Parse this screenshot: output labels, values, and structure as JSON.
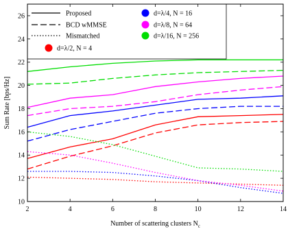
{
  "chart_data": {
    "type": "line",
    "xlabel": "Number of scattering clusters N",
    "xlabel_sub": "c",
    "ylabel": "Sum Rate [bps/Hz]",
    "xlim": [
      2,
      14
    ],
    "ylim": [
      10,
      27
    ],
    "x_ticks": [
      "2",
      "4",
      "6",
      "8",
      "10",
      "12",
      "14"
    ],
    "y_ticks": [
      "10",
      "12",
      "14",
      "16",
      "18",
      "20",
      "22",
      "24",
      "26"
    ],
    "grid": false,
    "legend_placement": "top",
    "schemes": [
      {
        "label": "Proposed",
        "dash": "solid"
      },
      {
        "label": "BCD wMMSE",
        "dash": "dashed"
      },
      {
        "label": "Mismatched",
        "dash": "dotted"
      }
    ],
    "configs": [
      {
        "label": "d=λ/2, N = 4",
        "color": "#ff0000"
      },
      {
        "label": "d=λ/4, N = 16",
        "color": "#0000ff"
      },
      {
        "label": "d=λ/8, N = 64",
        "color": "#ff00ff"
      },
      {
        "label": "d=λ/16, N = 256",
        "color": "#00dd00"
      }
    ],
    "series": [
      {
        "config": 0,
        "scheme": 0,
        "x": [
          2,
          4,
          6,
          8,
          10,
          12,
          14
        ],
        "y": [
          13.7,
          14.7,
          15.4,
          16.6,
          17.3,
          17.4,
          17.5
        ]
      },
      {
        "config": 0,
        "scheme": 1,
        "x": [
          2,
          4,
          6,
          8,
          10,
          12,
          14
        ],
        "y": [
          12.8,
          13.9,
          14.8,
          15.9,
          16.6,
          16.8,
          16.9
        ]
      },
      {
        "config": 0,
        "scheme": 2,
        "x": [
          2,
          4,
          6,
          8,
          10,
          12,
          14
        ],
        "y": [
          12.1,
          12.0,
          11.9,
          11.7,
          11.6,
          11.5,
          11.4
        ]
      },
      {
        "config": 1,
        "scheme": 0,
        "x": [
          2,
          4,
          6,
          8,
          10,
          12,
          14
        ],
        "y": [
          16.4,
          17.4,
          17.8,
          18.3,
          18.8,
          18.9,
          19.1
        ]
      },
      {
        "config": 1,
        "scheme": 1,
        "x": [
          2,
          4,
          6,
          8,
          10,
          12,
          14
        ],
        "y": [
          15.2,
          16.2,
          16.9,
          17.6,
          18.0,
          18.2,
          18.2
        ]
      },
      {
        "config": 1,
        "scheme": 2,
        "x": [
          2,
          4,
          6,
          8,
          10,
          12,
          14
        ],
        "y": [
          12.6,
          12.6,
          12.5,
          12.2,
          11.8,
          11.2,
          10.7
        ]
      },
      {
        "config": 2,
        "scheme": 0,
        "x": [
          2,
          4,
          6,
          8,
          10,
          12,
          14
        ],
        "y": [
          18.1,
          18.9,
          19.2,
          19.9,
          20.3,
          20.6,
          20.8
        ]
      },
      {
        "config": 2,
        "scheme": 1,
        "x": [
          2,
          4,
          6,
          8,
          10,
          12,
          14
        ],
        "y": [
          17.4,
          18.0,
          18.2,
          18.6,
          19.2,
          19.6,
          19.9
        ]
      },
      {
        "config": 2,
        "scheme": 2,
        "x": [
          2,
          4,
          6,
          8,
          10,
          12,
          14
        ],
        "y": [
          14.3,
          14.0,
          13.3,
          12.5,
          11.8,
          11.4,
          10.9
        ]
      },
      {
        "config": 3,
        "scheme": 0,
        "x": [
          2,
          4,
          6,
          8,
          10,
          12,
          14
        ],
        "y": [
          21.2,
          21.6,
          21.9,
          22.1,
          22.2,
          22.2,
          22.2
        ]
      },
      {
        "config": 3,
        "scheme": 1,
        "x": [
          2,
          4,
          6,
          8,
          10,
          12,
          14
        ],
        "y": [
          20.1,
          20.2,
          20.6,
          20.9,
          21.1,
          21.2,
          21.3
        ]
      },
      {
        "config": 3,
        "scheme": 2,
        "x": [
          2,
          4,
          6,
          8,
          10,
          12,
          14
        ],
        "y": [
          16.0,
          15.6,
          14.9,
          13.9,
          12.9,
          12.8,
          12.6
        ]
      }
    ]
  }
}
